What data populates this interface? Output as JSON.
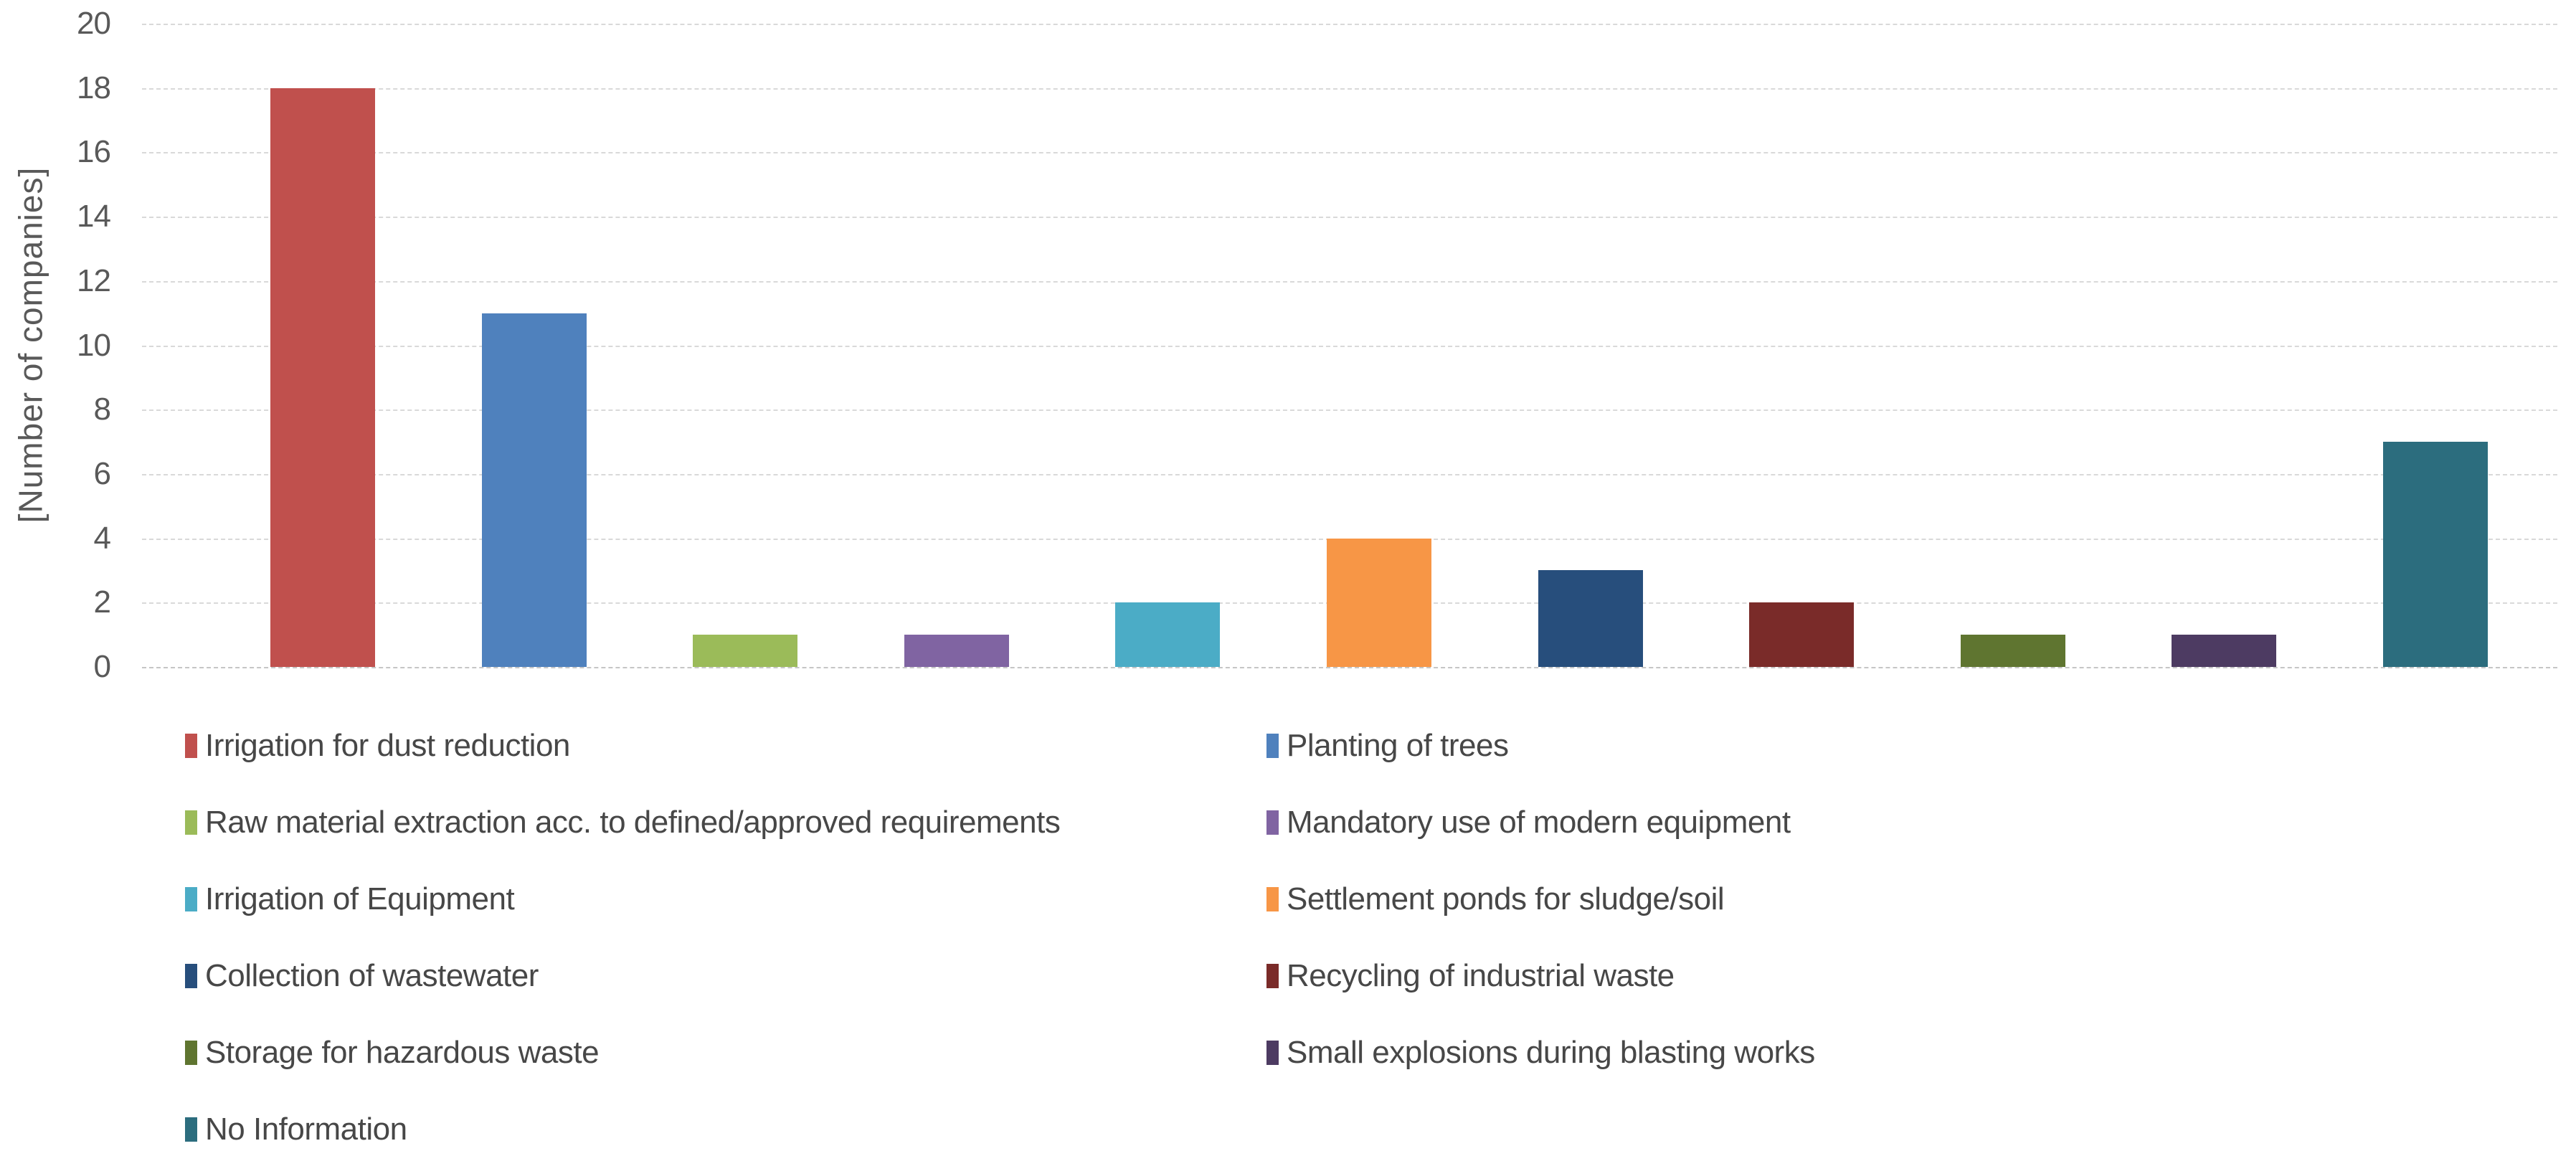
{
  "chart_data": {
    "type": "bar",
    "title": "",
    "xlabel": "",
    "ylabel": "[Number of companies]",
    "ylim": [
      0,
      20
    ],
    "ytick_step": 2,
    "grid": "horizontal dashed light-gray lines at every tick",
    "legend_position": "bottom, two columns",
    "categories": [
      "Irrigation for dust reduction",
      "Planting of trees",
      "Raw material extraction acc. to defined/approved requirements",
      "Mandatory use of modern equipment",
      "Irrigation of Equipment",
      "Settlement ponds for sludge/soil",
      "Collection of wastewater",
      "Recycling of industrial waste",
      "Storage for hazardous waste",
      "Small explosions during blasting works",
      "No Information"
    ],
    "values": [
      18,
      11,
      1,
      1,
      2,
      4,
      3,
      2,
      1,
      1,
      7
    ],
    "colors": [
      "#C0504D",
      "#4F81BD",
      "#9BBB59",
      "#8064A2",
      "#4BACC6",
      "#F79646",
      "#274E7C",
      "#7A2B29",
      "#5F7530",
      "#4D3B62",
      "#2C6D7E"
    ]
  },
  "style_colors": {
    "axis_text": "#595959",
    "legend_text": "#474747",
    "gridline": "#D9D9D9",
    "background": "#FFFFFF"
  }
}
